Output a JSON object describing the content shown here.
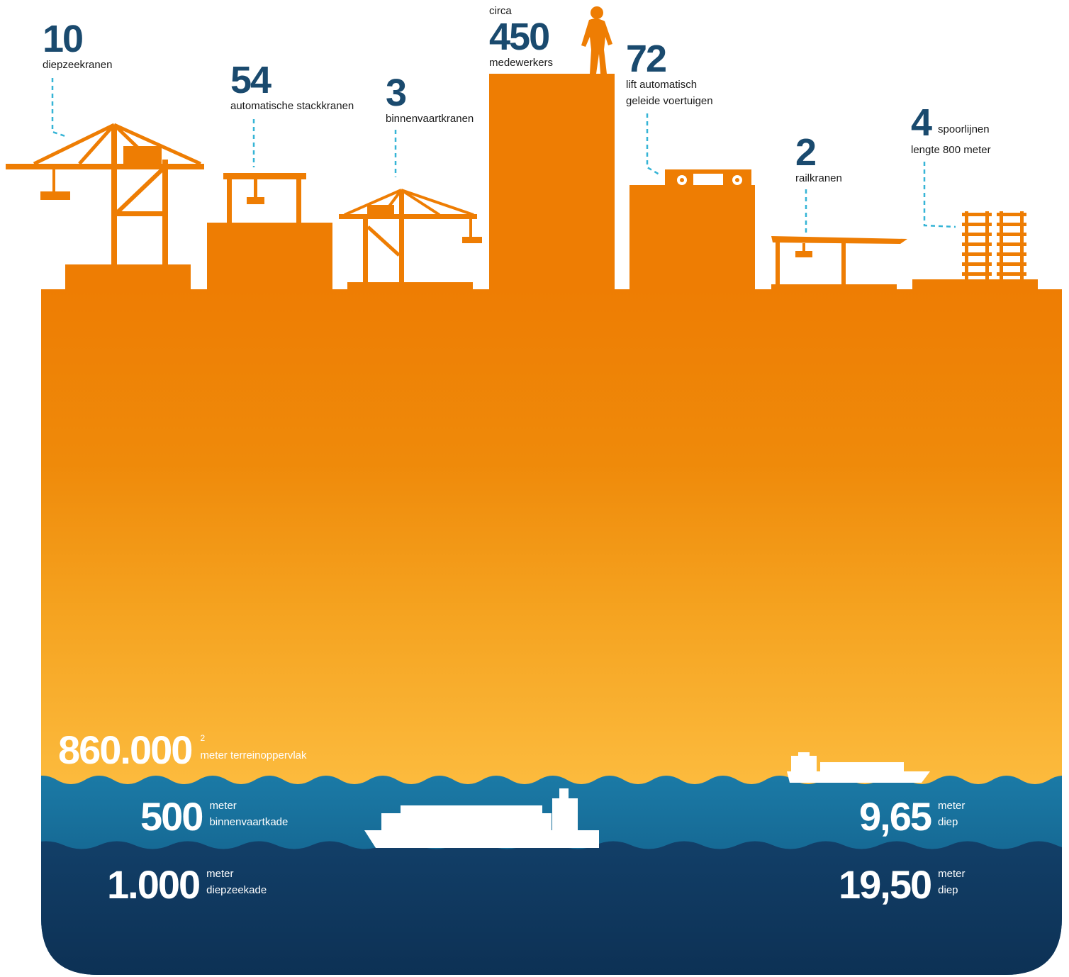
{
  "top_stats": [
    {
      "id": "diepzeekranen",
      "value": "10",
      "label": "diepzeekranen"
    },
    {
      "id": "stackkranen",
      "value": "54",
      "label": "automatische stackkranen"
    },
    {
      "id": "binnenvaartkranen",
      "value": "3",
      "label": "binnenvaartkranen"
    },
    {
      "id": "medewerkers",
      "prefix": "circa",
      "value": "450",
      "label": "medewerkers"
    },
    {
      "id": "voertuigen",
      "value": "72",
      "label_line1": "lift automatisch",
      "label_line2": "geleide voertuigen"
    },
    {
      "id": "railkranen",
      "value": "2",
      "label": "railkranen"
    },
    {
      "id": "spoorlijnen",
      "value": "4",
      "label_line1": "spoorlijnen",
      "label_line2": "lengte 800 meter"
    }
  ],
  "area": {
    "value": "860.000",
    "superscript": "2",
    "label": "meter terreinoppervlak"
  },
  "quays": [
    {
      "id": "binnenvaartkade",
      "value": "500",
      "label_line1": "meter",
      "label_line2": "binnenvaartkade"
    },
    {
      "id": "diepzeekade",
      "value": "1.000",
      "label_line1": "meter",
      "label_line2": "diepzeekade"
    }
  ],
  "depths": [
    {
      "id": "diepte-binnenvaart",
      "value": "9,65",
      "label_line1": "meter",
      "label_line2": "diep"
    },
    {
      "id": "diepte-diepzee",
      "value": "19,50",
      "label_line1": "meter",
      "label_line2": "diep"
    }
  ],
  "colors": {
    "orange": "#ee7d03",
    "orange_light": "#fcb53a",
    "navy_text": "#1a4a6e",
    "leader": "#35b4d6",
    "water_top": "#1b7aa6",
    "water_mid": "#145f8c",
    "water_deep": "#0d3457"
  },
  "icons": [
    "quay-crane-icon",
    "stack-crane-icon",
    "barge-crane-icon",
    "worker-icon",
    "agv-icon",
    "rail-crane-icon",
    "rail-track-icon",
    "container-ship-icon",
    "barge-icon"
  ]
}
